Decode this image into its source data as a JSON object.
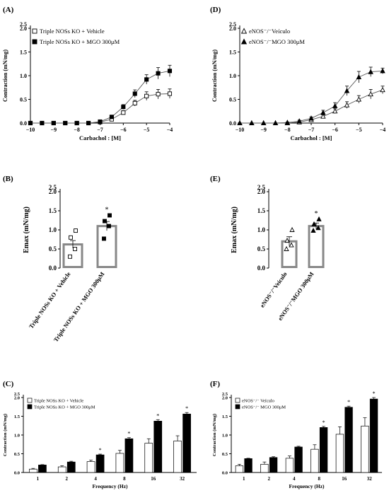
{
  "chart_data": [
    {
      "id": "A",
      "type": "line",
      "panel_label": "(A)",
      "xlabel": "Carbachol : [M]",
      "ylabel": "Contraction (mN/mg)",
      "xlim": [
        -10,
        -4
      ],
      "ylim": [
        0,
        2.0
      ],
      "xticks": [
        -10,
        -9,
        -8,
        -7,
        -6,
        -5,
        -4
      ],
      "xtick_labels": [
        "−10",
        "−9",
        "−8",
        "−7",
        "−6",
        "−5",
        "−4"
      ],
      "yticks": [
        0,
        0.5,
        1.0,
        1.5,
        2.0
      ],
      "ytick_labels": [
        "0.0",
        "0.5",
        "1.0",
        "1.5",
        "2.0"
      ],
      "x_extra_label": "2.5",
      "legend_position": "top-left",
      "series": [
        {
          "name": "Triple NOSs KO + Vehicle",
          "marker": "open-square",
          "x": [
            -10,
            -9.5,
            -9,
            -8.5,
            -8,
            -7.5,
            -7,
            -6.5,
            -6,
            -5.5,
            -5,
            -4.5,
            -4
          ],
          "y": [
            0,
            0,
            0,
            0,
            0,
            0,
            0.02,
            0.08,
            0.22,
            0.42,
            0.57,
            0.61,
            0.62
          ],
          "err": [
            0,
            0,
            0,
            0,
            0,
            0,
            0.01,
            0.02,
            0.04,
            0.06,
            0.09,
            0.1,
            0.1
          ]
        },
        {
          "name": "Triple NOSs KO + MGO 300μM",
          "marker": "filled-square",
          "x": [
            -10,
            -9.5,
            -9,
            -8.5,
            -8,
            -7.5,
            -7,
            -6.5,
            -6,
            -5.5,
            -5,
            -4.5,
            -4
          ],
          "y": [
            0,
            0,
            0,
            0,
            0,
            0,
            0.03,
            0.13,
            0.34,
            0.62,
            0.92,
            1.05,
            1.1
          ],
          "err": [
            0,
            0,
            0,
            0,
            0,
            0,
            0.01,
            0.03,
            0.05,
            0.08,
            0.1,
            0.12,
            0.12
          ]
        }
      ]
    },
    {
      "id": "D",
      "type": "line",
      "panel_label": "(D)",
      "xlabel": "Carbachol : [M]",
      "ylabel": "Contraction (mN/mg)",
      "xlim": [
        -10,
        -4
      ],
      "ylim": [
        0,
        2.0
      ],
      "xticks": [
        -10,
        -9,
        -8,
        -7,
        -6,
        -5,
        -4
      ],
      "xtick_labels": [
        "−10",
        "−9",
        "−8",
        "−7",
        "−6",
        "−5",
        "−4"
      ],
      "yticks": [
        0,
        0.5,
        1.0,
        1.5,
        2.0
      ],
      "ytick_labels": [
        "0.0",
        "0.5",
        "1.0",
        "1.5",
        "2.0"
      ],
      "x_extra_label": "2.5",
      "legend_position": "top-left",
      "series": [
        {
          "name": "eNOS⁻/⁻Veículo",
          "marker": "open-triangle",
          "x": [
            -10,
            -9.5,
            -9,
            -8.5,
            -8,
            -7.5,
            -7,
            -6.5,
            -6,
            -5.5,
            -5,
            -4.5,
            -4
          ],
          "y": [
            0,
            0,
            0,
            0,
            0,
            0.02,
            0.07,
            0.14,
            0.25,
            0.38,
            0.5,
            0.61,
            0.7
          ],
          "err": [
            0,
            0,
            0,
            0,
            0,
            0.01,
            0.02,
            0.03,
            0.05,
            0.07,
            0.08,
            0.1,
            0.08
          ]
        },
        {
          "name": "eNOS⁻/⁻MGO 300μM",
          "marker": "filled-triangle",
          "x": [
            -10,
            -9.5,
            -9,
            -8.5,
            -8,
            -7.5,
            -7,
            -6.5,
            -6,
            -5.5,
            -5,
            -4.5,
            -4
          ],
          "y": [
            0,
            0,
            0,
            0,
            0.01,
            0.04,
            0.1,
            0.22,
            0.36,
            0.68,
            0.97,
            1.08,
            1.1
          ],
          "err": [
            0,
            0,
            0,
            0,
            0.01,
            0.02,
            0.03,
            0.05,
            0.07,
            0.1,
            0.12,
            0.1,
            0.06
          ]
        }
      ]
    },
    {
      "id": "B",
      "type": "bar",
      "panel_label": "(B)",
      "ylabel": "Emax (mN/mg)",
      "ylim": [
        0,
        2.0
      ],
      "yticks": [
        0,
        0.5,
        1.0,
        1.5,
        2.0
      ],
      "ytick_labels": [
        "0.0",
        "0.5",
        "1.0",
        "1.5",
        "2.0"
      ],
      "x_extra_label": "2.5",
      "categories": [
        "Triple NOSs KO + Vehicle",
        "Triple NOSs KO + MGO 300μM"
      ],
      "values": [
        0.62,
        1.1
      ],
      "err": [
        0.1,
        0.12
      ],
      "points": [
        [
          0.3,
          0.5,
          0.8,
          0.98
        ],
        [
          0.77,
          1.1,
          1.23,
          1.38
        ]
      ],
      "point_markers": [
        "open-square",
        "filled-square"
      ],
      "significance": [
        "",
        "*"
      ]
    },
    {
      "id": "E",
      "type": "bar",
      "panel_label": "(E)",
      "ylabel": "Emax (mN/mg)",
      "ylim": [
        0,
        2.0
      ],
      "yticks": [
        0,
        0.5,
        1.0,
        1.5,
        2.0
      ],
      "ytick_labels": [
        "0.0",
        "0.5",
        "1.0",
        "1.5",
        "2.0"
      ],
      "x_extra_label": "2.5",
      "categories": [
        "eNOS⁻/⁻Veículo",
        "eNOS⁻/⁻MGO 300μM"
      ],
      "values": [
        0.7,
        1.1
      ],
      "err": [
        0.12,
        0.08
      ],
      "points": [
        [
          0.5,
          0.6,
          0.72,
          1.0
        ],
        [
          0.98,
          1.05,
          1.15,
          1.28
        ]
      ],
      "point_markers": [
        "open-triangle",
        "filled-triangle"
      ],
      "significance": [
        "",
        "*"
      ]
    },
    {
      "id": "C",
      "type": "bar",
      "panel_label": "(C)",
      "xlabel": "Frequency (Hz)",
      "ylabel": "Contraction (mN/mg)",
      "ylim": [
        0,
        2.0
      ],
      "yticks": [
        0,
        0.5,
        1.0,
        1.5,
        2.0
      ],
      "ytick_labels": [
        "0.0",
        "0.5",
        "1.0",
        "1.5",
        "2.0"
      ],
      "x_extra_label": "2.5",
      "categories": [
        "1",
        "2",
        "4",
        "8",
        "16",
        "32"
      ],
      "legend_position": "top-left",
      "series": [
        {
          "name": "Triple NOSs KO + Vehicle",
          "fill": "#ffffff",
          "values": [
            0.09,
            0.15,
            0.29,
            0.51,
            0.78,
            0.84
          ],
          "err": [
            0.02,
            0.03,
            0.04,
            0.08,
            0.12,
            0.14
          ]
        },
        {
          "name": "Triple NOSs KO + MGO 300μM",
          "fill": "#000000",
          "values": [
            0.2,
            0.28,
            0.47,
            0.9,
            1.37,
            1.56
          ],
          "err": [
            0.01,
            0.02,
            0.02,
            0.03,
            0.04,
            0.04
          ]
        }
      ],
      "significance": [
        "",
        "",
        "*",
        "*",
        "*",
        "*"
      ]
    },
    {
      "id": "F",
      "type": "bar",
      "panel_label": "(F)",
      "xlabel": "Frequency (Hz)",
      "ylabel": "Contraction (mN/mg)",
      "ylim": [
        0,
        2.0
      ],
      "yticks": [
        0,
        0.5,
        1.0,
        1.5,
        2.0
      ],
      "ytick_labels": [
        "0.0",
        "0.5",
        "1.0",
        "1.5",
        "2.0"
      ],
      "x_extra_label": "2.5",
      "categories": [
        "1",
        "2",
        "4",
        "8",
        "16",
        "32"
      ],
      "legend_position": "top-left",
      "series": [
        {
          "name": "eNOS⁻/⁻ Veículo",
          "fill": "#ffffff",
          "values": [
            0.18,
            0.22,
            0.38,
            0.62,
            1.02,
            1.24
          ],
          "err": [
            0.04,
            0.06,
            0.06,
            0.12,
            0.2,
            0.22
          ]
        },
        {
          "name": "eNOS⁻/⁻ MGO 300μM",
          "fill": "#000000",
          "values": [
            0.37,
            0.4,
            0.68,
            1.2,
            1.74,
            1.96
          ],
          "err": [
            0.01,
            0.02,
            0.02,
            0.03,
            0.03,
            0.04
          ]
        }
      ],
      "significance": [
        "",
        "",
        "",
        "*",
        "*",
        "*"
      ]
    }
  ]
}
